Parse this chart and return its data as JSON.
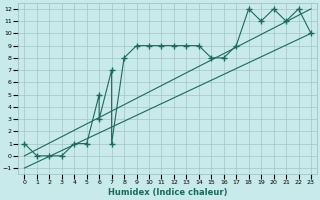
{
  "title": "",
  "xlabel": "Humidex (Indice chaleur)",
  "bg_color": "#c8eaea",
  "grid_color": "#9bbcbc",
  "line_color": "#1a6b5a",
  "xlim": [
    -0.5,
    23.5
  ],
  "ylim": [
    -1.5,
    12.5
  ],
  "xticks": [
    0,
    1,
    2,
    3,
    4,
    5,
    6,
    7,
    8,
    9,
    10,
    11,
    12,
    13,
    14,
    15,
    16,
    17,
    18,
    19,
    20,
    21,
    22,
    23
  ],
  "yticks": [
    -1,
    0,
    1,
    2,
    3,
    4,
    5,
    6,
    7,
    8,
    9,
    10,
    11,
    12
  ],
  "data_line": {
    "x": [
      0,
      1,
      2,
      3,
      4,
      5,
      6,
      6,
      7,
      7,
      8,
      9,
      10,
      11,
      12,
      13,
      14,
      15,
      16,
      17,
      18,
      19,
      20,
      21,
      22,
      23
    ],
    "y": [
      1,
      0,
      0,
      0,
      1,
      1,
      5,
      3,
      7,
      1,
      8,
      9,
      9,
      9,
      9,
      9,
      9,
      8,
      8,
      9,
      12,
      11,
      12,
      11,
      12,
      10
    ]
  },
  "line1": {
    "x": [
      0,
      23
    ],
    "y": [
      -1,
      10
    ]
  },
  "line2": {
    "x": [
      0,
      23
    ],
    "y": [
      0,
      12
    ]
  }
}
